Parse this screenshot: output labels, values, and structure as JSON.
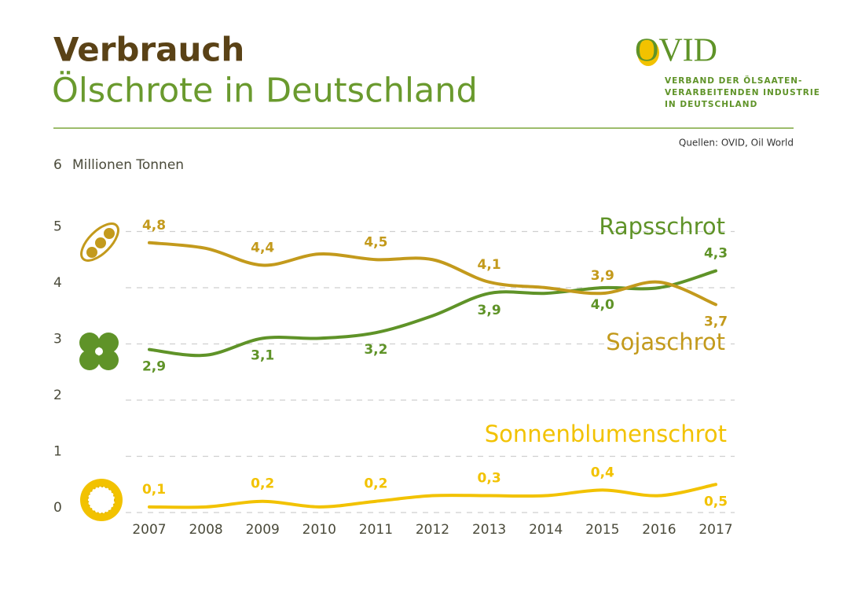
{
  "chart_data": {
    "type": "line",
    "title": "Verbrauch",
    "subtitle": "Ölschrote in Deutschland",
    "y_label": "Millionen Tonnen",
    "source": "Quellen: OVID, Oil World",
    "logo": {
      "name": "OVID",
      "lines": [
        "VERBAND DER ÖLSAATEN-",
        "VERARBEITENDEN INDUSTRIE",
        "IN DEUTSCHLAND"
      ]
    },
    "categories": [
      "2007",
      "2008",
      "2009",
      "2010",
      "2011",
      "2012",
      "2013",
      "2014",
      "2015",
      "2016",
      "2017"
    ],
    "ylim": [
      0,
      6
    ],
    "yticks": [
      0,
      1,
      2,
      3,
      4,
      5,
      6
    ],
    "grid": true,
    "series": [
      {
        "name": "Rapsschrot",
        "color": "#5f9328",
        "values": [
          2.9,
          2.8,
          3.1,
          3.1,
          3.2,
          3.5,
          3.9,
          3.9,
          4.0,
          4.0,
          4.3
        ],
        "value_labels": [
          "2,9",
          null,
          "3,1",
          null,
          "3,2",
          null,
          "3,9",
          null,
          "4,0",
          null,
          "4,3"
        ]
      },
      {
        "name": "Sojaschrot",
        "color": "#c39a1c",
        "values": [
          4.8,
          4.7,
          4.4,
          4.6,
          4.5,
          4.5,
          4.1,
          4.0,
          3.9,
          4.1,
          3.7
        ],
        "value_labels": [
          "4,8",
          null,
          "4,4",
          null,
          "4,5",
          null,
          "4,1",
          null,
          "3,9",
          null,
          "3,7"
        ]
      },
      {
        "name": "Sonnenblumenschrot",
        "color": "#f2c200",
        "values": [
          0.1,
          0.1,
          0.2,
          0.1,
          0.2,
          0.3,
          0.3,
          0.3,
          0.4,
          0.3,
          0.5
        ],
        "value_labels": [
          "0,1",
          null,
          "0,2",
          null,
          "0,2",
          null,
          "0,3",
          null,
          "0,4",
          null,
          "0,5"
        ]
      }
    ]
  }
}
